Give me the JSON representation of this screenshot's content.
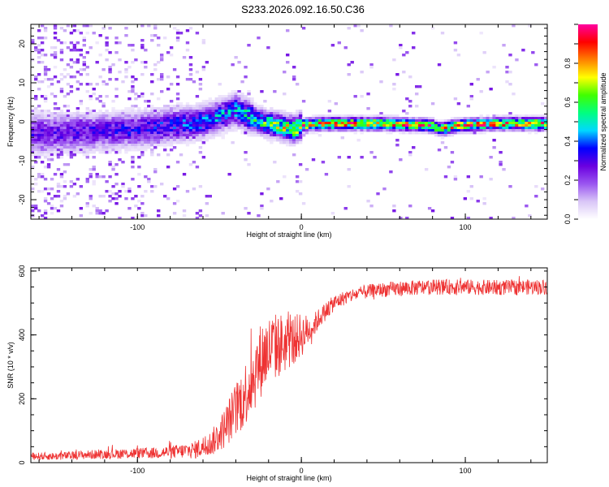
{
  "title": "S233.2026.092.16.50.C36",
  "chart_data": [
    {
      "type": "heatmap",
      "name": "spectrogram",
      "xlabel": "Height of straight line (km)",
      "ylabel": "Frequency (Hz)",
      "xlim": [
        -165,
        150
      ],
      "ylim": [
        -25,
        25
      ],
      "x_ticks": [
        -100,
        0,
        100
      ],
      "y_ticks": [
        -20,
        -10,
        0,
        10,
        20
      ],
      "colorbar": {
        "label": "Normalized spectral amplitude",
        "range": [
          0,
          1
        ],
        "ticks": [
          0.0,
          0.2,
          0.4,
          0.6,
          0.8
        ],
        "colors": [
          "#ffffff",
          "#d9c6f7",
          "#9a55f0",
          "#6a00e0",
          "#0000ff",
          "#00d8ff",
          "#00ff80",
          "#40ff00",
          "#ffff00",
          "#ff8000",
          "#ff0000",
          "#ff00a0"
        ]
      },
      "ridge": {
        "description_points_x": [
          -150,
          -100,
          -60,
          -40,
          -25,
          -15,
          -5,
          0,
          10,
          50,
          80,
          85,
          95,
          120,
          145
        ],
        "frequency_hz": [
          -3,
          -2,
          0,
          3,
          0,
          -1,
          -2,
          -1,
          -0.5,
          -0.5,
          -1,
          -2,
          -1,
          -0.5,
          -0.5
        ],
        "peak_amplitude": [
          0.3,
          0.35,
          0.45,
          0.5,
          0.6,
          0.7,
          0.8,
          0.85,
          0.9,
          0.9,
          0.9,
          0.85,
          0.9,
          0.9,
          0.9
        ]
      }
    },
    {
      "type": "line",
      "name": "snr",
      "xlabel": "Height of straight line (km)",
      "ylabel": "SNR (10 * v/v)",
      "xlim": [
        -165,
        150
      ],
      "ylim": [
        0,
        610
      ],
      "x_ticks": [
        -100,
        0,
        100
      ],
      "y_ticks": [
        0,
        200,
        400,
        600
      ],
      "color": "#ee3333",
      "series": [
        {
          "name": "SNR",
          "x": [
            -165,
            -150,
            -130,
            -110,
            -90,
            -75,
            -65,
            -55,
            -48,
            -42,
            -36,
            -30,
            -24,
            -18,
            -12,
            -6,
            0,
            6,
            12,
            20,
            28,
            35,
            45,
            60,
            80,
            100,
            120,
            140,
            150
          ],
          "y": [
            20,
            20,
            25,
            28,
            30,
            35,
            40,
            60,
            100,
            150,
            200,
            260,
            330,
            360,
            370,
            380,
            400,
            420,
            460,
            500,
            520,
            530,
            540,
            545,
            550,
            550,
            548,
            550,
            550
          ],
          "spread": [
            12,
            12,
            14,
            16,
            18,
            22,
            28,
            40,
            60,
            80,
            100,
            110,
            120,
            110,
            100,
            80,
            70,
            40,
            30,
            25,
            22,
            22,
            22,
            24,
            24,
            24,
            24,
            24,
            24
          ]
        }
      ]
    }
  ]
}
